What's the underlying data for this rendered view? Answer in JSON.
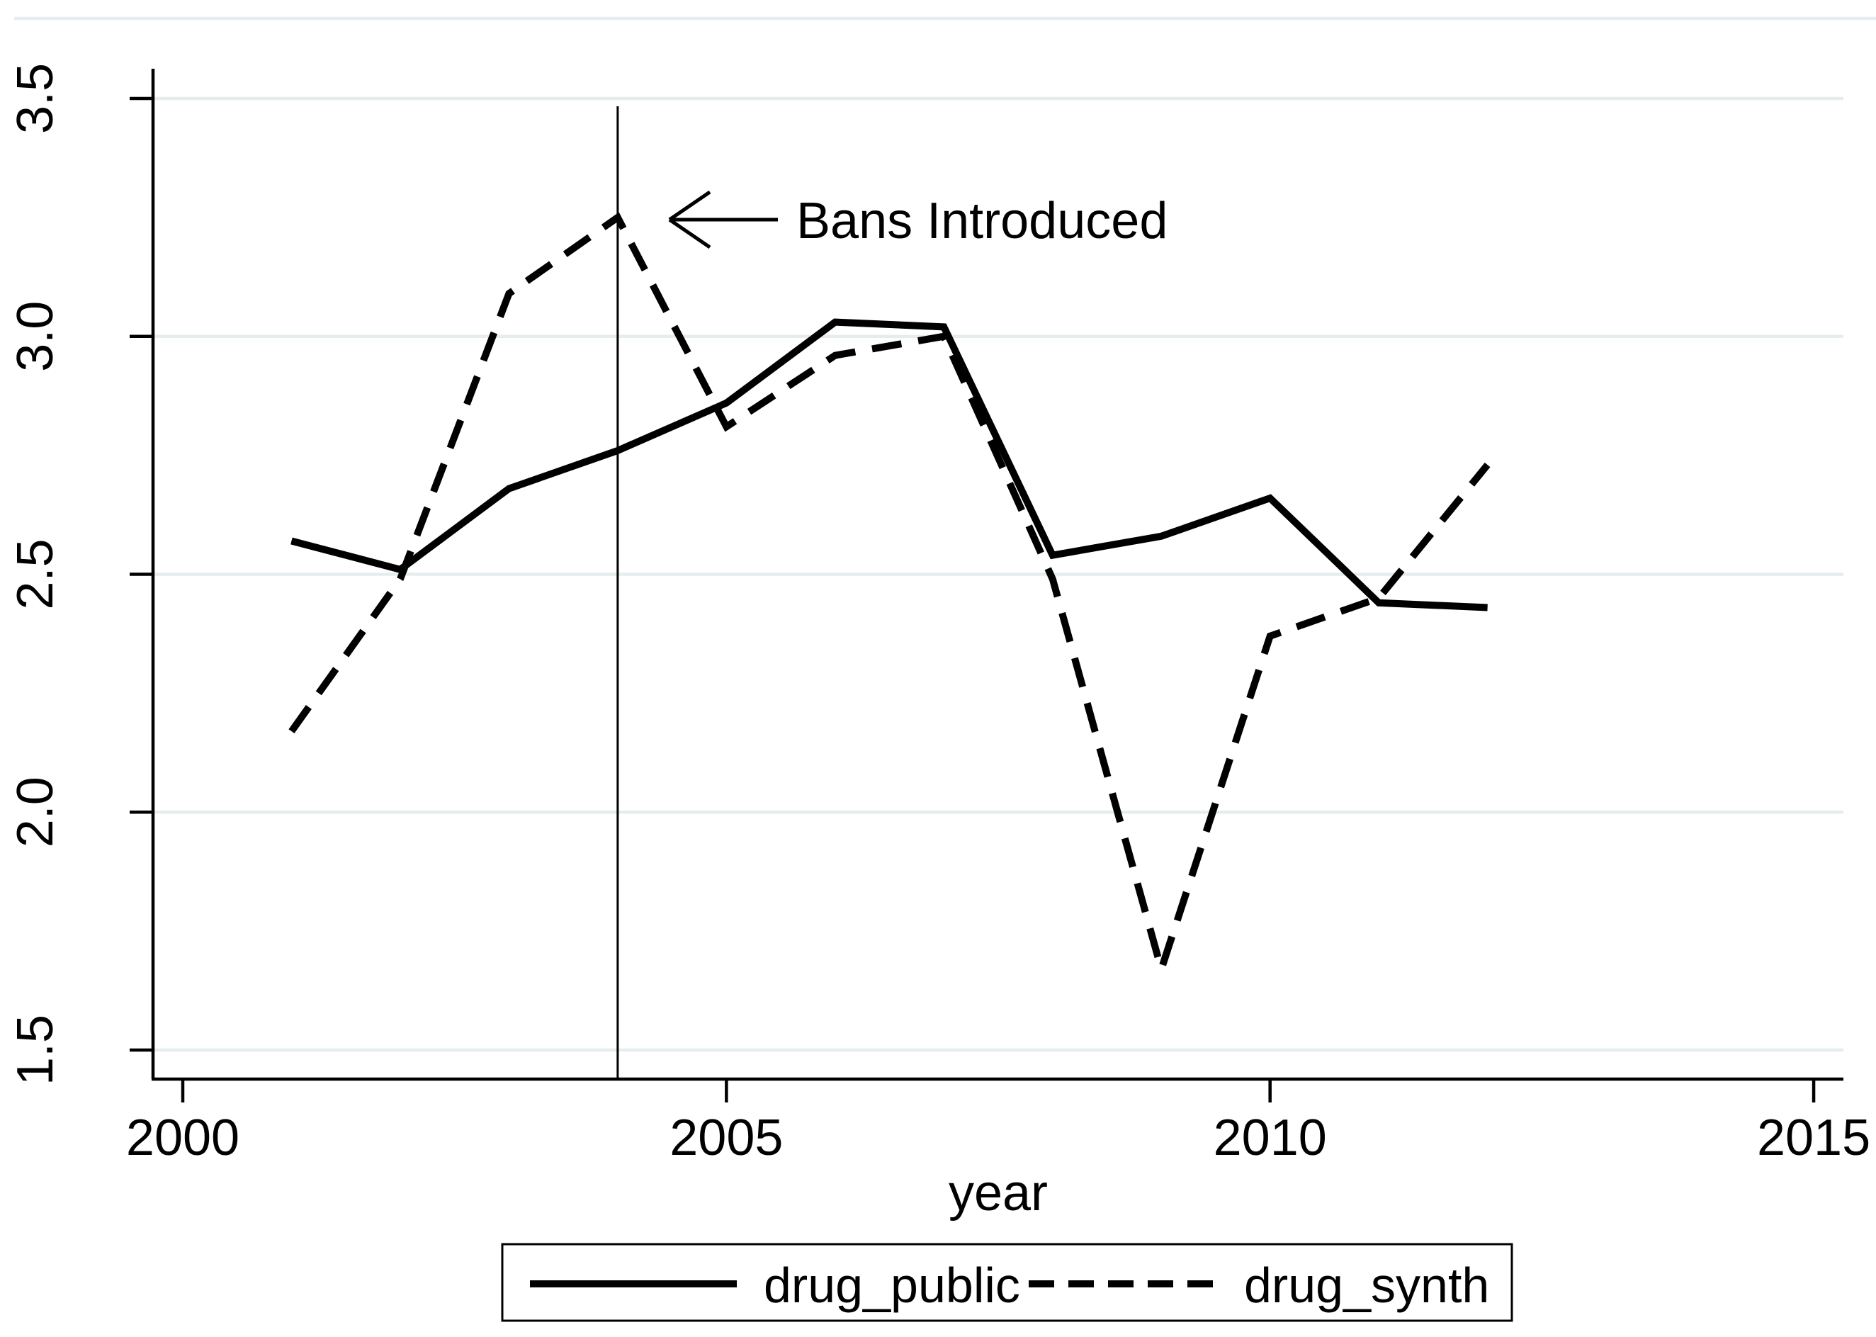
{
  "chart_data": {
    "type": "line",
    "x": [
      2001,
      2002,
      2003,
      2004,
      2005,
      2006,
      2007,
      2008,
      2009,
      2010,
      2011,
      2012
    ],
    "series": [
      {
        "name": "drug_public",
        "style": "solid",
        "values": [
          2.57,
          2.51,
          2.68,
          2.76,
          2.86,
          3.03,
          3.02,
          2.54,
          2.58,
          2.66,
          2.44,
          2.43
        ]
      },
      {
        "name": "drug_synth",
        "style": "dashed",
        "values": [
          2.17,
          2.49,
          3.09,
          3.25,
          2.81,
          2.96,
          3.0,
          2.49,
          1.67,
          2.37,
          2.45,
          2.73
        ]
      }
    ],
    "title": "",
    "xlabel": "year",
    "ylabel": "",
    "x_tick_values": [
      2000,
      2005,
      2010,
      2015
    ],
    "x_tick_labels": [
      "2000",
      "2005",
      "2010",
      "2015"
    ],
    "y_tick_values": [
      1.5,
      2.0,
      2.5,
      3.0,
      3.5
    ],
    "y_tick_labels": [
      "1.5",
      "2.0",
      "2.5",
      "3.0",
      "3.5"
    ],
    "xlim": [
      1999.7,
      2015.3
    ],
    "ylim": [
      1.44,
      3.56
    ],
    "grid": true,
    "legend_position": "bottom",
    "annotation": {
      "text": "Bans Introduced",
      "line_x": 2004
    },
    "colors": {
      "line": "#000000",
      "grid": "#e6edef",
      "background": "#ffffff"
    }
  },
  "legend": {
    "items": [
      {
        "label": "drug_public",
        "style": "solid"
      },
      {
        "label": "drug_synth",
        "style": "dashed"
      }
    ]
  }
}
